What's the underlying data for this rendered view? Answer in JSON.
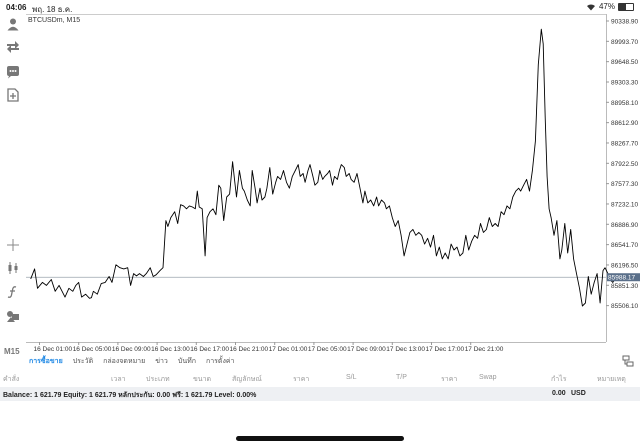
{
  "status": {
    "time": "04:06",
    "date": "พฤ. 18 ธ.ค.",
    "battery": "47%",
    "battery_level": 0.47
  },
  "chart": {
    "symbol_label": "BTCUSDm, M15",
    "current_price": "85988.17",
    "current_price_value": 85988.17,
    "price_ticks": [
      {
        "label": "90338.90",
        "value": 90338.9
      },
      {
        "label": "89993.70",
        "value": 89993.7
      },
      {
        "label": "89648.50",
        "value": 89648.5
      },
      {
        "label": "89303.30",
        "value": 89303.3
      },
      {
        "label": "88958.10",
        "value": 88958.1
      },
      {
        "label": "88612.90",
        "value": 88612.9
      },
      {
        "label": "88267.70",
        "value": 88267.7
      },
      {
        "label": "87922.50",
        "value": 87922.5
      },
      {
        "label": "87577.30",
        "value": 87577.3
      },
      {
        "label": "87232.10",
        "value": 87232.1
      },
      {
        "label": "86886.90",
        "value": 86886.9
      },
      {
        "label": "86541.70",
        "value": 86541.7
      },
      {
        "label": "86196.50",
        "value": 86196.5
      },
      {
        "label": "85851.30",
        "value": 85851.3
      },
      {
        "label": "85506.10",
        "value": 85506.1
      }
    ],
    "time_ticks": [
      "16 Dec 01:00",
      "16 Dec 05:00",
      "16 Dec 09:00",
      "16 Dec 13:00",
      "16 Dec 17:00",
      "16 Dec 21:00",
      "17 Dec 01:00",
      "17 Dec 05:00",
      "17 Dec 09:00",
      "17 Dec 13:00",
      "17 Dec 17:00",
      "17 Dec 21:00"
    ],
    "colors": {
      "line": "#000000",
      "axis": "#bbbbbb",
      "price_badge": "#5a6f8a",
      "price_line": "#9aa3ad"
    }
  },
  "chart_data": {
    "type": "line",
    "xlabel": "",
    "ylabel": "",
    "ylim": [
      85350,
      90500
    ],
    "x_unit": "hours since first time tick",
    "series": [
      {
        "values": [
          [
            -0.9,
            85960
          ],
          [
            -0.5,
            86130
          ],
          [
            -0.2,
            85800
          ],
          [
            0.3,
            85900
          ],
          [
            0.7,
            85850
          ],
          [
            1.2,
            85950
          ],
          [
            1.6,
            85750
          ],
          [
            2.0,
            85850
          ],
          [
            2.6,
            85650
          ],
          [
            3.0,
            85800
          ],
          [
            3.4,
            85750
          ],
          [
            3.7,
            85850
          ],
          [
            4.0,
            85900
          ],
          [
            4.3,
            85650
          ],
          [
            4.7,
            85700
          ],
          [
            5.1,
            85630
          ],
          [
            5.3,
            85640
          ],
          [
            5.5,
            85750
          ],
          [
            5.9,
            85700
          ],
          [
            6.3,
            85880
          ],
          [
            6.7,
            85900
          ],
          [
            7.1,
            86000
          ],
          [
            7.4,
            85900
          ],
          [
            7.8,
            86200
          ],
          [
            8.2,
            86150
          ],
          [
            8.6,
            86130
          ],
          [
            9.0,
            86150
          ],
          [
            9.3,
            85850
          ],
          [
            9.6,
            86050
          ],
          [
            9.9,
            86010
          ],
          [
            10.2,
            86050
          ],
          [
            10.6,
            86000
          ],
          [
            10.9,
            86050
          ],
          [
            11.3,
            86150
          ],
          [
            11.6,
            86000
          ],
          [
            11.9,
            86030
          ],
          [
            12.3,
            86100
          ],
          [
            12.6,
            86150
          ],
          [
            12.9,
            86950
          ],
          [
            13.1,
            86850
          ],
          [
            13.4,
            87000
          ],
          [
            13.8,
            87100
          ],
          [
            14.1,
            86900
          ],
          [
            14.4,
            87220
          ],
          [
            14.7,
            87200
          ],
          [
            15.0,
            87150
          ],
          [
            15.3,
            87200
          ],
          [
            15.6,
            87180
          ],
          [
            15.9,
            87150
          ],
          [
            16.1,
            87450
          ],
          [
            16.3,
            87180
          ],
          [
            16.6,
            87150
          ],
          [
            16.9,
            86350
          ],
          [
            17.1,
            87000
          ],
          [
            17.4,
            87100
          ],
          [
            17.7,
            87150
          ],
          [
            18.0,
            87050
          ],
          [
            18.3,
            87550
          ],
          [
            18.5,
            87500
          ],
          [
            18.8,
            86950
          ],
          [
            19.1,
            87350
          ],
          [
            19.4,
            87400
          ],
          [
            19.7,
            87950
          ],
          [
            19.9,
            87650
          ],
          [
            20.1,
            87350
          ],
          [
            20.4,
            87800
          ],
          [
            20.7,
            87500
          ],
          [
            20.9,
            87450
          ],
          [
            21.2,
            87300
          ],
          [
            21.5,
            87200
          ],
          [
            21.7,
            87800
          ],
          [
            22.0,
            87500
          ],
          [
            22.2,
            87250
          ],
          [
            22.5,
            87500
          ],
          [
            22.7,
            87300
          ],
          [
            23.0,
            87350
          ],
          [
            23.2,
            87500
          ],
          [
            23.5,
            87850
          ],
          [
            23.8,
            87400
          ],
          [
            24.1,
            87600
          ],
          [
            24.3,
            87700
          ],
          [
            24.6,
            87650
          ],
          [
            24.9,
            87800
          ],
          [
            25.2,
            87600
          ],
          [
            25.5,
            87500
          ],
          [
            25.8,
            87700
          ],
          [
            26.1,
            87800
          ],
          [
            26.4,
            87900
          ],
          [
            26.6,
            87700
          ],
          [
            26.9,
            87750
          ],
          [
            27.1,
            87600
          ],
          [
            27.4,
            87800
          ],
          [
            27.6,
            87900
          ],
          [
            27.9,
            87700
          ],
          [
            28.1,
            87550
          ],
          [
            28.4,
            87600
          ],
          [
            28.6,
            87800
          ],
          [
            28.9,
            87650
          ],
          [
            29.1,
            87700
          ],
          [
            29.4,
            87750
          ],
          [
            29.6,
            87800
          ],
          [
            29.9,
            87550
          ],
          [
            30.1,
            87700
          ],
          [
            30.4,
            87650
          ],
          [
            30.6,
            87800
          ],
          [
            30.8,
            87900
          ],
          [
            31.1,
            87850
          ],
          [
            31.3,
            87700
          ],
          [
            31.6,
            87750
          ],
          [
            31.8,
            87650
          ],
          [
            32.1,
            87600
          ],
          [
            32.4,
            87750
          ],
          [
            32.7,
            87500
          ],
          [
            33.0,
            87250
          ],
          [
            33.2,
            87450
          ],
          [
            33.5,
            87250
          ],
          [
            33.8,
            87300
          ],
          [
            34.1,
            87200
          ],
          [
            34.4,
            87350
          ],
          [
            34.6,
            87200
          ],
          [
            34.9,
            87300
          ],
          [
            35.2,
            87250
          ],
          [
            35.4,
            87150
          ],
          [
            35.7,
            87200
          ],
          [
            36.0,
            87000
          ],
          [
            36.3,
            86850
          ],
          [
            36.6,
            86950
          ],
          [
            36.9,
            86700
          ],
          [
            37.2,
            86350
          ],
          [
            37.5,
            86550
          ],
          [
            37.8,
            86750
          ],
          [
            38.1,
            86800
          ],
          [
            38.4,
            86700
          ],
          [
            38.7,
            86750
          ],
          [
            39.0,
            86700
          ],
          [
            39.3,
            86550
          ],
          [
            39.6,
            86650
          ],
          [
            39.9,
            86500
          ],
          [
            40.2,
            86700
          ],
          [
            40.5,
            86350
          ],
          [
            40.8,
            86500
          ],
          [
            41.1,
            86300
          ],
          [
            41.4,
            86400
          ],
          [
            41.7,
            86300
          ],
          [
            42.0,
            86550
          ],
          [
            42.3,
            86450
          ],
          [
            42.6,
            86500
          ],
          [
            42.9,
            86350
          ],
          [
            43.2,
            86400
          ],
          [
            43.5,
            86700
          ],
          [
            43.8,
            86450
          ],
          [
            44.1,
            86600
          ],
          [
            44.4,
            86700
          ],
          [
            44.7,
            86650
          ],
          [
            45.0,
            86900
          ],
          [
            45.3,
            86750
          ],
          [
            45.6,
            86800
          ],
          [
            45.9,
            87000
          ],
          [
            46.2,
            86850
          ],
          [
            46.5,
            86900
          ],
          [
            46.8,
            86850
          ],
          [
            47.1,
            87100
          ],
          [
            47.4,
            87050
          ],
          [
            47.7,
            87200
          ],
          [
            48.0,
            87150
          ],
          [
            48.3,
            87350
          ],
          [
            48.6,
            87450
          ],
          [
            48.9,
            87500
          ],
          [
            49.1,
            87450
          ],
          [
            49.4,
            87550
          ],
          [
            49.7,
            87650
          ],
          [
            50.0,
            87450
          ],
          [
            50.3,
            87800
          ],
          [
            50.6,
            88300
          ],
          [
            50.9,
            89600
          ],
          [
            51.2,
            90200
          ],
          [
            51.4,
            89950
          ],
          [
            51.6,
            88700
          ],
          [
            51.8,
            87700
          ],
          [
            52.0,
            87150
          ],
          [
            52.2,
            87000
          ],
          [
            52.5,
            86700
          ],
          [
            52.8,
            86950
          ],
          [
            53.1,
            86300
          ],
          [
            53.3,
            86450
          ],
          [
            53.6,
            86900
          ],
          [
            53.9,
            86400
          ],
          [
            54.2,
            86800
          ],
          [
            54.5,
            86300
          ],
          [
            54.8,
            86050
          ],
          [
            55.1,
            85800
          ],
          [
            55.4,
            85500
          ],
          [
            55.7,
            85550
          ],
          [
            56.0,
            86000
          ],
          [
            56.3,
            85700
          ],
          [
            56.6,
            85900
          ],
          [
            56.9,
            86050
          ],
          [
            57.2,
            85550
          ],
          [
            57.5,
            86100
          ],
          [
            57.7,
            86150
          ],
          [
            58.0,
            86050
          ],
          [
            58.2,
            85950
          ],
          [
            58.5,
            85900
          ],
          [
            58.7,
            85950
          ]
        ]
      }
    ]
  },
  "toolbar": {
    "items": [
      {
        "name": "account-icon",
        "icon": "user"
      },
      {
        "name": "trade-arrows-icon",
        "icon": "arrows"
      },
      {
        "name": "chat-icon",
        "icon": "chat"
      },
      {
        "name": "new-order-icon",
        "icon": "document-plus"
      },
      {
        "name": "crosshair-icon",
        "icon": "crosshair"
      },
      {
        "name": "chart-type-icon",
        "icon": "candles"
      },
      {
        "name": "indicators-icon",
        "icon": "function"
      },
      {
        "name": "objects-icon",
        "icon": "shapes"
      }
    ],
    "timeframe": "M15"
  },
  "tabs": {
    "items": [
      "การซื้อขาย",
      "ประวัติ",
      "กล่องจดหมาย",
      "ข่าว",
      "บันทึก",
      "การตั้งค่า"
    ],
    "active_index": 0
  },
  "columns": [
    "คำสั่ง",
    "เวลา",
    "ประเภท",
    "ขนาด",
    "สัญลักษณ์",
    "ราคา",
    "S/L",
    "T/P",
    "ราคา",
    "Swap",
    "กำไร",
    "หมายเหตุ"
  ],
  "balance": {
    "text": "Balance: 1 621.79 Equity: 1 621.79 หลักประกัน: 0.00 ฟรี: 1 621.79 Level: 0.00%",
    "amount": "0.00",
    "currency": "USD"
  }
}
